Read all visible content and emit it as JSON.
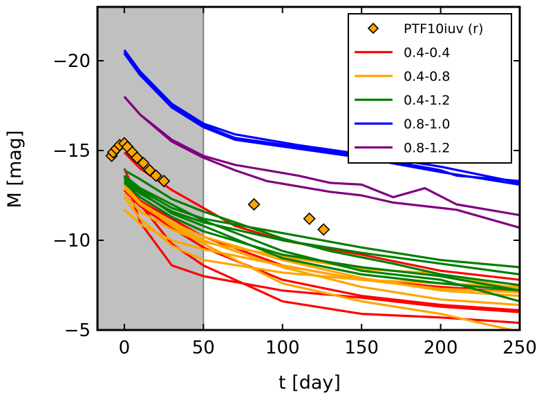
{
  "chart_data": {
    "type": "line",
    "xlabel": "t [day]",
    "ylabel": "M [mag]",
    "xlim": [
      -17,
      250
    ],
    "ylim": [
      -5,
      -23
    ],
    "y_inverted": true,
    "x_ticks": [
      0,
      50,
      100,
      150,
      200,
      250
    ],
    "x_tick_labels": [
      "0",
      "50",
      "100",
      "150",
      "200",
      "250"
    ],
    "y_ticks": [
      -20,
      -15,
      -10,
      -5
    ],
    "y_tick_labels": [
      "−20",
      "−15",
      "−10",
      "−5"
    ],
    "shaded_region": {
      "x": [
        -17,
        50
      ],
      "color": "#c0c0c0"
    },
    "legend_placement": "top-right",
    "grid": false,
    "observations": {
      "name": "PTF10iuv (r)",
      "color": "#ffa500",
      "marker": "diamond",
      "points": [
        [
          -8,
          -14.7
        ],
        [
          -7,
          -14.9
        ],
        [
          -5,
          -15.1
        ],
        [
          -3,
          -15.3
        ],
        [
          0,
          -15.4
        ],
        [
          2,
          -15.2
        ],
        [
          5,
          -14.9
        ],
        [
          8,
          -14.6
        ],
        [
          12,
          -14.3
        ],
        [
          16,
          -13.9
        ],
        [
          20,
          -13.6
        ],
        [
          25,
          -13.3
        ],
        [
          82,
          -12.0
        ],
        [
          117,
          -11.2
        ],
        [
          126,
          -10.6
        ]
      ]
    },
    "series": [
      {
        "name": "0.4-0.4",
        "color": "#ff0000",
        "lines": [
          [
            [
              0,
              -13.6
            ],
            [
              10,
              -11.0
            ],
            [
              30,
              -8.6
            ],
            [
              50,
              -8.0
            ],
            [
              100,
              -7.2
            ],
            [
              150,
              -6.8
            ],
            [
              200,
              -6.3
            ],
            [
              250,
              -6.0
            ]
          ],
          [
            [
              0,
              -14.0
            ],
            [
              10,
              -12.0
            ],
            [
              30,
              -9.8
            ],
            [
              50,
              -8.6
            ],
            [
              100,
              -6.6
            ],
            [
              150,
              -5.9
            ],
            [
              200,
              -5.7
            ],
            [
              250,
              -5.4
            ]
          ],
          [
            [
              0,
              -14.9
            ],
            [
              10,
              -14.0
            ],
            [
              30,
              -12.8
            ],
            [
              50,
              -11.8
            ],
            [
              70,
              -10.8
            ],
            [
              100,
              -10.0
            ],
            [
              150,
              -9.2
            ],
            [
              200,
              -8.3
            ],
            [
              250,
              -7.8
            ]
          ],
          [
            [
              0,
              -13.1
            ],
            [
              10,
              -12.2
            ],
            [
              30,
              -11.2
            ],
            [
              50,
              -10.2
            ],
            [
              100,
              -8.6
            ],
            [
              150,
              -7.8
            ],
            [
              200,
              -7.4
            ],
            [
              250,
              -7.1
            ]
          ],
          [
            [
              0,
              -12.8
            ],
            [
              10,
              -11.9
            ],
            [
              30,
              -10.7
            ],
            [
              50,
              -9.6
            ],
            [
              100,
              -7.8
            ],
            [
              150,
              -6.9
            ],
            [
              200,
              -6.4
            ],
            [
              250,
              -6.1
            ]
          ]
        ]
      },
      {
        "name": "0.4-0.8",
        "color": "#ffa500",
        "lines": [
          [
            [
              0,
              -11.7
            ],
            [
              10,
              -10.9
            ],
            [
              30,
              -10.0
            ],
            [
              50,
              -9.5
            ],
            [
              100,
              -8.6
            ],
            [
              150,
              -7.8
            ],
            [
              200,
              -7.3
            ],
            [
              250,
              -7.1
            ]
          ],
          [
            [
              0,
              -12.4
            ],
            [
              10,
              -11.2
            ],
            [
              30,
              -9.7
            ],
            [
              50,
              -8.9
            ],
            [
              100,
              -8.2
            ],
            [
              150,
              -7.8
            ],
            [
              200,
              -7.6
            ],
            [
              250,
              -7.4
            ]
          ],
          [
            [
              0,
              -12.6
            ],
            [
              10,
              -11.6
            ],
            [
              30,
              -10.6
            ],
            [
              50,
              -9.9
            ],
            [
              100,
              -9.1
            ],
            [
              150,
              -8.4
            ],
            [
              190,
              -8.2
            ],
            [
              230,
              -7.6
            ],
            [
              250,
              -7.3
            ]
          ],
          [
            [
              0,
              -12.9
            ],
            [
              10,
              -12.0
            ],
            [
              30,
              -10.9
            ],
            [
              50,
              -10.0
            ],
            [
              100,
              -8.5
            ],
            [
              150,
              -7.4
            ],
            [
              200,
              -6.7
            ],
            [
              250,
              -6.4
            ]
          ],
          [
            [
              0,
              -13.0
            ],
            [
              10,
              -12.1
            ],
            [
              30,
              -11.0
            ],
            [
              50,
              -10.2
            ],
            [
              100,
              -8.9
            ],
            [
              150,
              -7.9
            ],
            [
              200,
              -7.2
            ],
            [
              250,
              -6.9
            ]
          ],
          [
            [
              0,
              -13.1
            ],
            [
              10,
              -12.1
            ],
            [
              30,
              -10.8
            ],
            [
              50,
              -9.8
            ],
            [
              100,
              -7.6
            ],
            [
              150,
              -6.6
            ],
            [
              200,
              -5.9
            ],
            [
              250,
              -4.9
            ]
          ]
        ]
      },
      {
        "name": "0.4-1.2",
        "color": "#008000",
        "lines": [
          [
            [
              0,
              -13.3
            ],
            [
              10,
              -12.6
            ],
            [
              30,
              -11.6
            ],
            [
              50,
              -11.0
            ],
            [
              100,
              -10.0
            ],
            [
              150,
              -9.3
            ],
            [
              200,
              -8.7
            ],
            [
              250,
              -8.1
            ]
          ],
          [
            [
              0,
              -13.5
            ],
            [
              10,
              -12.8
            ],
            [
              30,
              -11.8
            ],
            [
              50,
              -11.2
            ],
            [
              100,
              -10.4
            ],
            [
              150,
              -9.6
            ],
            [
              200,
              -8.9
            ],
            [
              250,
              -8.5
            ]
          ],
          [
            [
              0,
              -13.9
            ],
            [
              10,
              -13.4
            ],
            [
              30,
              -12.3
            ],
            [
              50,
              -11.6
            ],
            [
              100,
              -10.1
            ],
            [
              130,
              -9.4
            ],
            [
              170,
              -8.7
            ],
            [
              200,
              -8.1
            ],
            [
              250,
              -7.5
            ]
          ],
          [
            [
              0,
              -13.2
            ],
            [
              10,
              -12.4
            ],
            [
              30,
              -11.3
            ],
            [
              50,
              -10.5
            ],
            [
              100,
              -9.2
            ],
            [
              150,
              -8.5
            ],
            [
              200,
              -8.0
            ],
            [
              250,
              -7.2
            ]
          ],
          [
            [
              0,
              -13.6
            ],
            [
              10,
              -12.9
            ],
            [
              30,
              -12.0
            ],
            [
              50,
              -11.1
            ],
            [
              100,
              -9.4
            ],
            [
              150,
              -8.3
            ],
            [
              200,
              -7.8
            ],
            [
              250,
              -6.6
            ]
          ],
          [
            [
              0,
              -13.4
            ],
            [
              10,
              -12.7
            ],
            [
              30,
              -11.5
            ],
            [
              50,
              -10.8
            ],
            [
              100,
              -9.0
            ],
            [
              150,
              -8.1
            ],
            [
              200,
              -7.6
            ],
            [
              250,
              -7.2
            ]
          ]
        ]
      },
      {
        "name": "0.8-1.0",
        "color": "#0000ff",
        "lines": [
          [
            [
              0,
              -20.6
            ],
            [
              10,
              -19.4
            ],
            [
              30,
              -17.6
            ],
            [
              50,
              -16.5
            ],
            [
              70,
              -15.9
            ],
            [
              110,
              -15.3
            ],
            [
              150,
              -14.8
            ],
            [
              200,
              -14.1
            ],
            [
              250,
              -13.2
            ]
          ],
          [
            [
              0,
              -20.5
            ],
            [
              10,
              -19.3
            ],
            [
              30,
              -17.5
            ],
            [
              50,
              -16.4
            ],
            [
              70,
              -15.7
            ],
            [
              110,
              -15.2
            ],
            [
              150,
              -14.7
            ],
            [
              200,
              -13.9
            ],
            [
              210,
              -13.6
            ],
            [
              250,
              -13.3
            ]
          ],
          [
            [
              0,
              -20.4
            ],
            [
              10,
              -19.2
            ],
            [
              30,
              -17.4
            ],
            [
              50,
              -16.3
            ],
            [
              70,
              -15.6
            ],
            [
              110,
              -15.1
            ],
            [
              150,
              -14.6
            ],
            [
              200,
              -13.8
            ],
            [
              250,
              -13.1
            ]
          ]
        ]
      },
      {
        "name": "0.8-1.2",
        "color": "#800080",
        "lines": [
          [
            [
              0,
              -18.0
            ],
            [
              10,
              -17.0
            ],
            [
              30,
              -15.6
            ],
            [
              50,
              -14.7
            ],
            [
              70,
              -14.2
            ],
            [
              90,
              -13.9
            ],
            [
              110,
              -13.6
            ],
            [
              130,
              -13.2
            ],
            [
              150,
              -13.1
            ],
            [
              170,
              -12.4
            ],
            [
              190,
              -12.9
            ],
            [
              210,
              -12.0
            ],
            [
              250,
              -11.4
            ]
          ],
          [
            [
              0,
              -18.0
            ],
            [
              10,
              -17.0
            ],
            [
              30,
              -15.5
            ],
            [
              50,
              -14.6
            ],
            [
              70,
              -13.9
            ],
            [
              90,
              -13.3
            ],
            [
              110,
              -13.0
            ],
            [
              130,
              -12.7
            ],
            [
              150,
              -12.5
            ],
            [
              170,
              -12.1
            ],
            [
              210,
              -11.7
            ],
            [
              250,
              -10.7
            ]
          ]
        ]
      }
    ]
  }
}
